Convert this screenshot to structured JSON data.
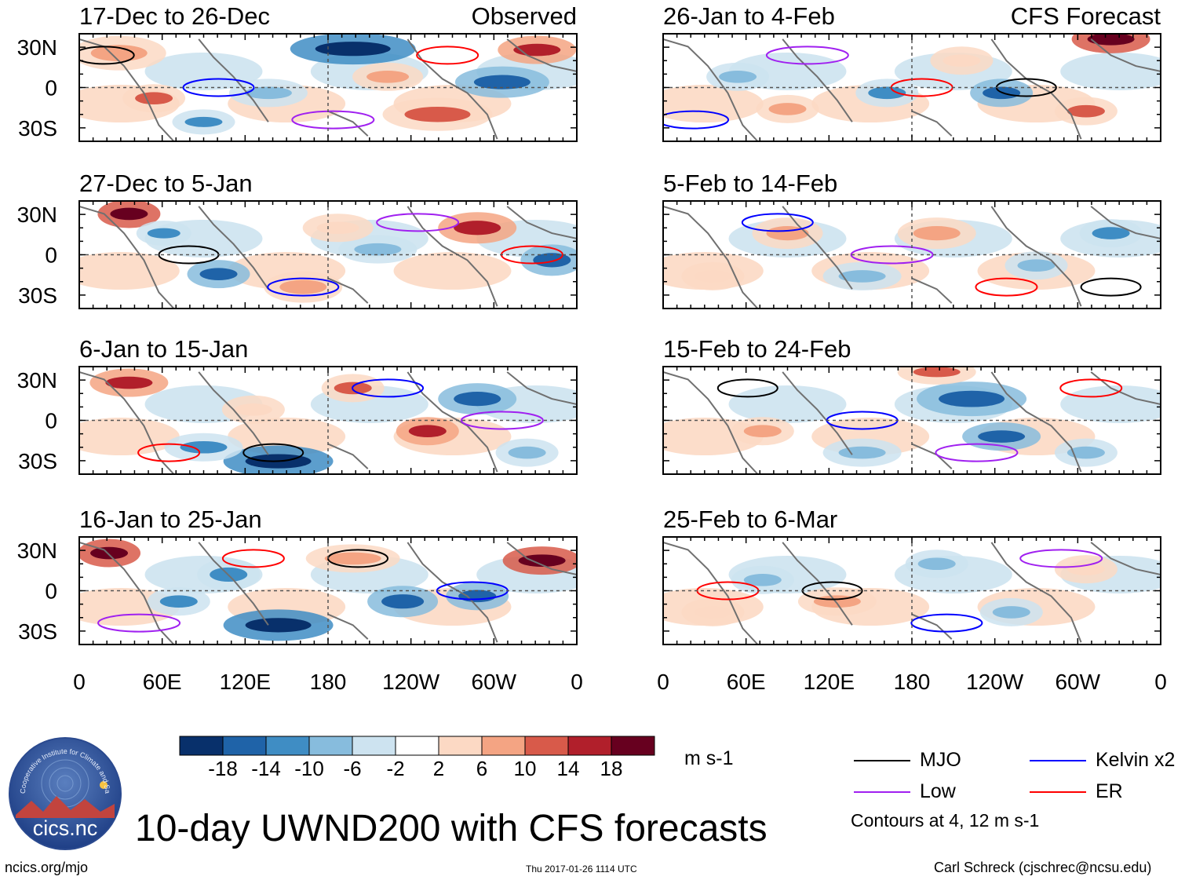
{
  "chart_data": {
    "type": "heatmap",
    "title": "10-day UWND200 with CFS forecasts",
    "column_headers": {
      "observed": "Observed",
      "forecast": "CFS Forecast"
    },
    "panels": [
      {
        "label": "17-Dec to 26-Dec",
        "column": "observed"
      },
      {
        "label": "27-Dec to 5-Jan",
        "column": "observed"
      },
      {
        "label": "6-Jan to 15-Jan",
        "column": "observed"
      },
      {
        "label": "16-Jan to 25-Jan",
        "column": "observed"
      },
      {
        "label": "26-Jan to 4-Feb",
        "column": "forecast"
      },
      {
        "label": "5-Feb to 14-Feb",
        "column": "forecast"
      },
      {
        "label": "15-Feb to 24-Feb",
        "column": "forecast"
      },
      {
        "label": "25-Feb to 6-Mar",
        "column": "forecast"
      }
    ],
    "lat_ticks": [
      "30N",
      "0",
      "30S"
    ],
    "lat_values": [
      30,
      0,
      -30
    ],
    "lat_range": [
      -40,
      40
    ],
    "lon_ticks": [
      "0",
      "60E",
      "120E",
      "180",
      "120W",
      "60W",
      "0"
    ],
    "lon_values": [
      0,
      60,
      120,
      180,
      240,
      300,
      360
    ],
    "lon_range": [
      0,
      360
    ],
    "colorbar": {
      "units": "m s-1",
      "tick_labels": [
        "-18",
        "-14",
        "-10",
        "-6",
        "-2",
        "2",
        "6",
        "10",
        "14",
        "18"
      ],
      "colors": [
        "#08306b",
        "#1f63a8",
        "#3f8dc4",
        "#87bcdd",
        "#cde3f0",
        "#ffffff",
        "#fcd9c4",
        "#f4a483",
        "#d85a4a",
        "#b11f2b",
        "#67001f"
      ]
    },
    "contour_legend": [
      {
        "label": "MJO",
        "color": "#000000"
      },
      {
        "label": "Kelvin x2",
        "color": "#0000ff"
      },
      {
        "label": "Low",
        "color": "#a020f0"
      },
      {
        "label": "ER",
        "color": "#ff0000"
      }
    ],
    "contour_note": "Contours at 4, 12 m s-1"
  },
  "footer": {
    "url": "ncics.org/mjo",
    "timestamp": "Thu 2017-01-26 1114 UTC",
    "author": "Carl Schreck (cjschrec@ncsu.edu)"
  },
  "logo": {
    "text": "cics.nc",
    "ring_text": "Cooperative Institute for Climate and Satellites"
  }
}
